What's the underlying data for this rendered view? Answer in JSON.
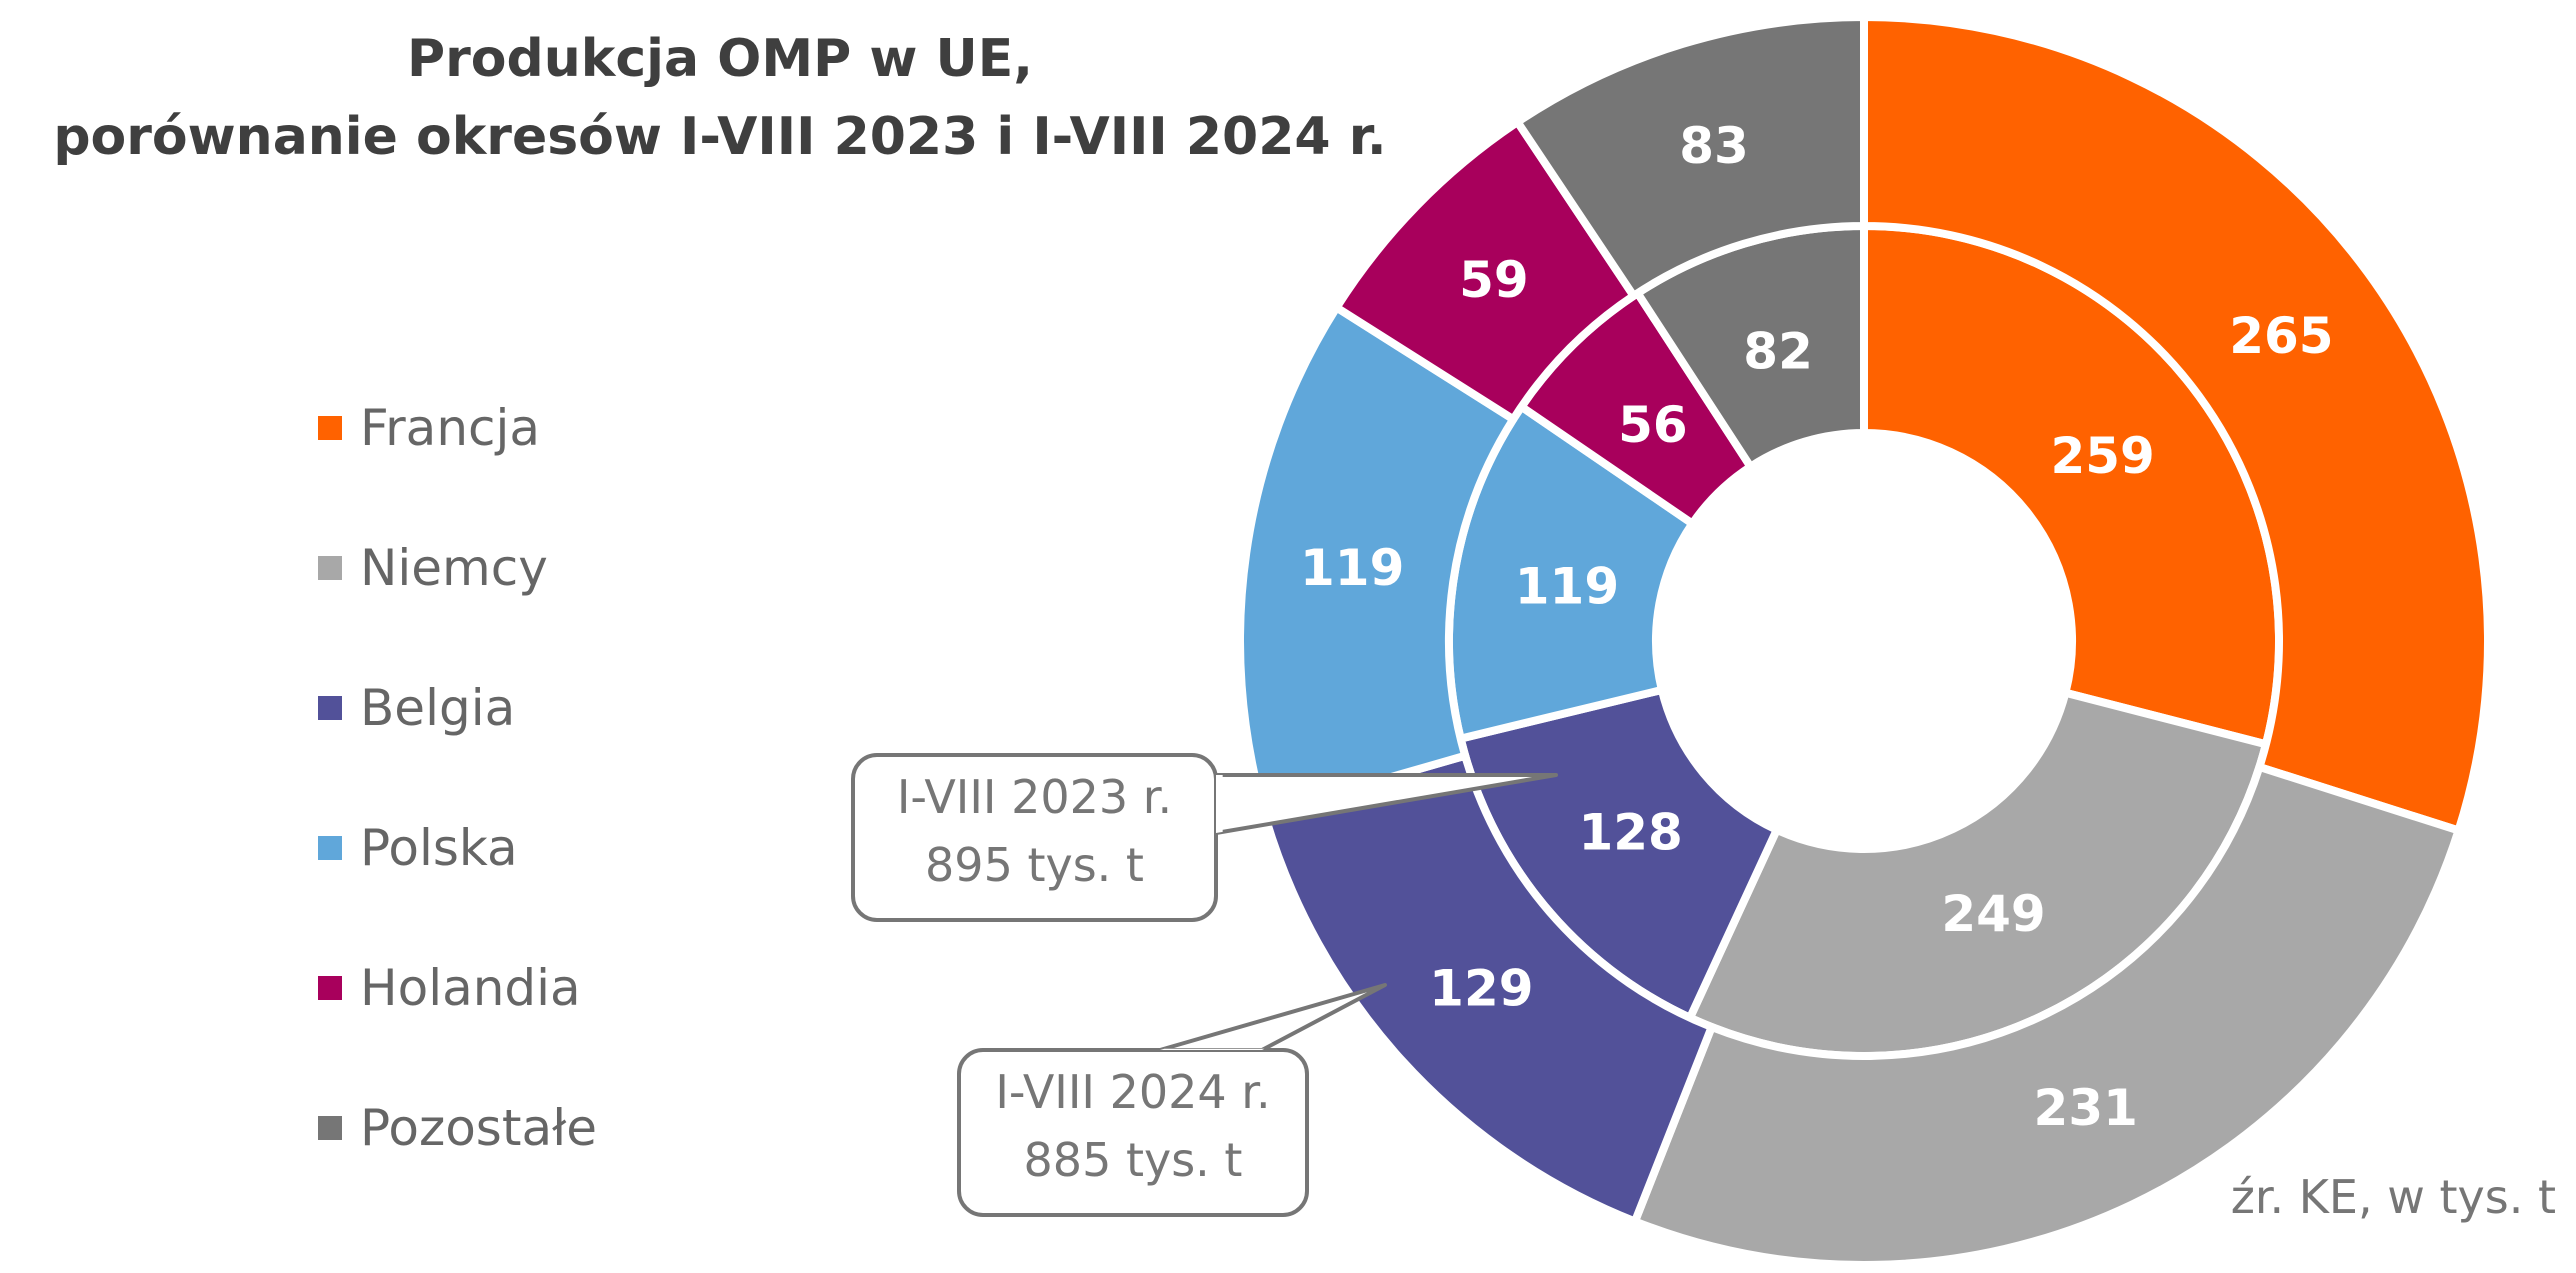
{
  "chart_data": {
    "type": "donut",
    "title_lines": [
      "Produkcja OMP w UE,",
      "porównanie okresów I-VIII 2023 i I-VIII 2024 r."
    ],
    "categories": [
      "Francja",
      "Niemcy",
      "Belgia",
      "Polska",
      "Holandia",
      "Pozostałe"
    ],
    "colors": [
      "#ff6200",
      "#a8a8a8",
      "#525199",
      "#60a7da",
      "#a8005c",
      "#767676"
    ],
    "series": [
      {
        "name": "I-VIII 2023 r.",
        "ring": "inner",
        "total_label": "895 tys. t",
        "values": [
          259,
          249,
          128,
          119,
          56,
          82
        ]
      },
      {
        "name": "I-VIII 2024 r.",
        "ring": "outer",
        "total_label": "885 tys. t",
        "values": [
          265,
          231,
          129,
          119,
          59,
          83
        ]
      }
    ],
    "legend_position": "left",
    "source_note": "źr. KE, w tys. t"
  }
}
